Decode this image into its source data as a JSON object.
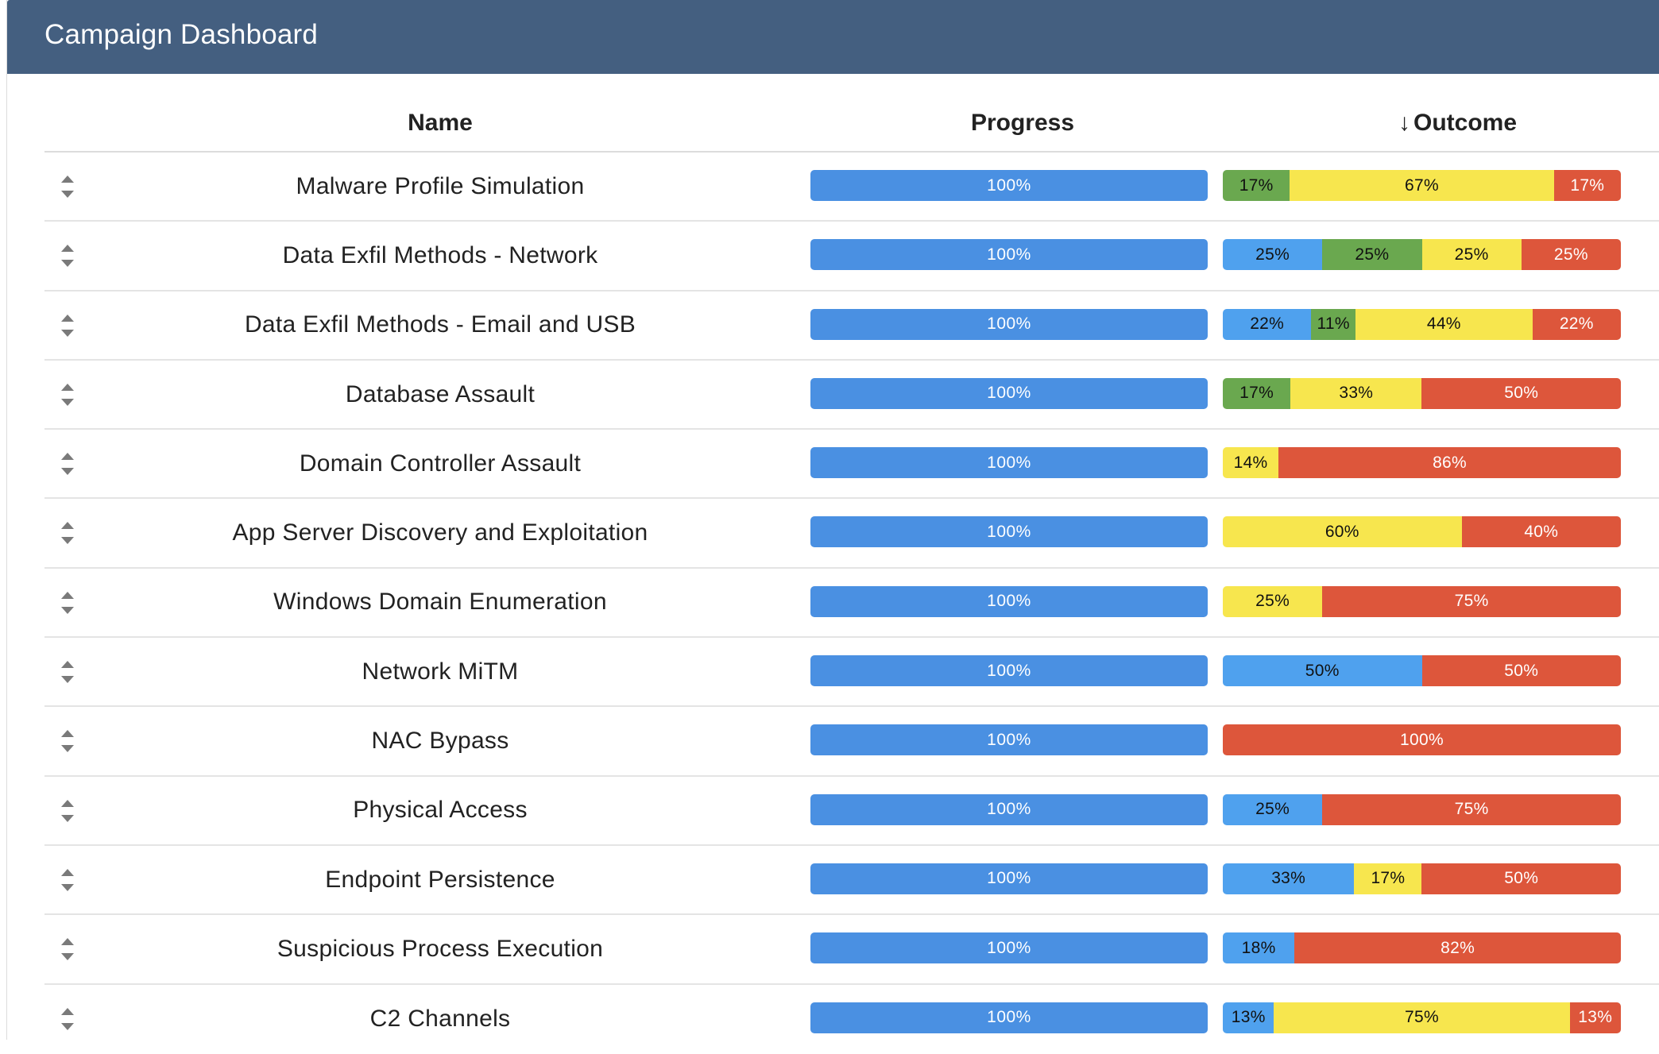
{
  "header": {
    "title": "Campaign Dashboard"
  },
  "columns": {
    "name": "Name",
    "progress": "Progress",
    "outcome_arrow": "↓",
    "outcome": "Outcome"
  },
  "colors": {
    "header_bg": "#445f80",
    "progress": "#4a90e2",
    "blue": "#4fa1ee",
    "green": "#6aa84f",
    "yellow": "#f7e64e",
    "red": "#dd563b"
  },
  "rows": [
    {
      "name": "Malware Profile Simulation",
      "progress": 100,
      "progress_label": "100%",
      "outcome": [
        {
          "color": "green",
          "value": 17,
          "label": "17%"
        },
        {
          "color": "yellow",
          "value": 67,
          "label": "67%"
        },
        {
          "color": "red",
          "value": 17,
          "label": "17%"
        }
      ]
    },
    {
      "name": "Data Exfil Methods - Network",
      "progress": 100,
      "progress_label": "100%",
      "outcome": [
        {
          "color": "blue",
          "value": 25,
          "label": "25%"
        },
        {
          "color": "green",
          "value": 25,
          "label": "25%"
        },
        {
          "color": "yellow",
          "value": 25,
          "label": "25%"
        },
        {
          "color": "red",
          "value": 25,
          "label": "25%"
        }
      ]
    },
    {
      "name": "Data Exfil Methods - Email and USB",
      "progress": 100,
      "progress_label": "100%",
      "outcome": [
        {
          "color": "blue",
          "value": 22,
          "label": "22%"
        },
        {
          "color": "green",
          "value": 11,
          "label": "11%"
        },
        {
          "color": "yellow",
          "value": 44,
          "label": "44%"
        },
        {
          "color": "red",
          "value": 22,
          "label": "22%"
        }
      ]
    },
    {
      "name": "Database Assault",
      "progress": 100,
      "progress_label": "100%",
      "outcome": [
        {
          "color": "green",
          "value": 17,
          "label": "17%"
        },
        {
          "color": "yellow",
          "value": 33,
          "label": "33%"
        },
        {
          "color": "red",
          "value": 50,
          "label": "50%"
        }
      ]
    },
    {
      "name": "Domain Controller Assault",
      "progress": 100,
      "progress_label": "100%",
      "outcome": [
        {
          "color": "yellow",
          "value": 14,
          "label": "14%"
        },
        {
          "color": "red",
          "value": 86,
          "label": "86%"
        }
      ]
    },
    {
      "name": "App Server Discovery and Exploitation",
      "progress": 100,
      "progress_label": "100%",
      "outcome": [
        {
          "color": "yellow",
          "value": 60,
          "label": "60%"
        },
        {
          "color": "red",
          "value": 40,
          "label": "40%"
        }
      ]
    },
    {
      "name": "Windows Domain Enumeration",
      "progress": 100,
      "progress_label": "100%",
      "outcome": [
        {
          "color": "yellow",
          "value": 25,
          "label": "25%"
        },
        {
          "color": "red",
          "value": 75,
          "label": "75%"
        }
      ]
    },
    {
      "name": "Network MiTM",
      "progress": 100,
      "progress_label": "100%",
      "outcome": [
        {
          "color": "blue",
          "value": 50,
          "label": "50%"
        },
        {
          "color": "red",
          "value": 50,
          "label": "50%"
        }
      ]
    },
    {
      "name": "NAC Bypass",
      "progress": 100,
      "progress_label": "100%",
      "outcome": [
        {
          "color": "red",
          "value": 100,
          "label": "100%"
        }
      ]
    },
    {
      "name": "Physical Access",
      "progress": 100,
      "progress_label": "100%",
      "outcome": [
        {
          "color": "blue",
          "value": 25,
          "label": "25%"
        },
        {
          "color": "red",
          "value": 75,
          "label": "75%"
        }
      ]
    },
    {
      "name": "Endpoint Persistence",
      "progress": 100,
      "progress_label": "100%",
      "outcome": [
        {
          "color": "blue",
          "value": 33,
          "label": "33%"
        },
        {
          "color": "yellow",
          "value": 17,
          "label": "17%"
        },
        {
          "color": "red",
          "value": 50,
          "label": "50%"
        }
      ]
    },
    {
      "name": "Suspicious Process Execution",
      "progress": 100,
      "progress_label": "100%",
      "outcome": [
        {
          "color": "blue",
          "value": 18,
          "label": "18%"
        },
        {
          "color": "red",
          "value": 82,
          "label": "82%"
        }
      ]
    },
    {
      "name": "C2 Channels",
      "progress": 100,
      "progress_label": "100%",
      "outcome": [
        {
          "color": "blue",
          "value": 13,
          "label": "13%"
        },
        {
          "color": "yellow",
          "value": 75,
          "label": "75%"
        },
        {
          "color": "red",
          "value": 13,
          "label": "13%"
        }
      ]
    }
  ],
  "icons": {
    "row_handle": "sort-handle-icon"
  }
}
